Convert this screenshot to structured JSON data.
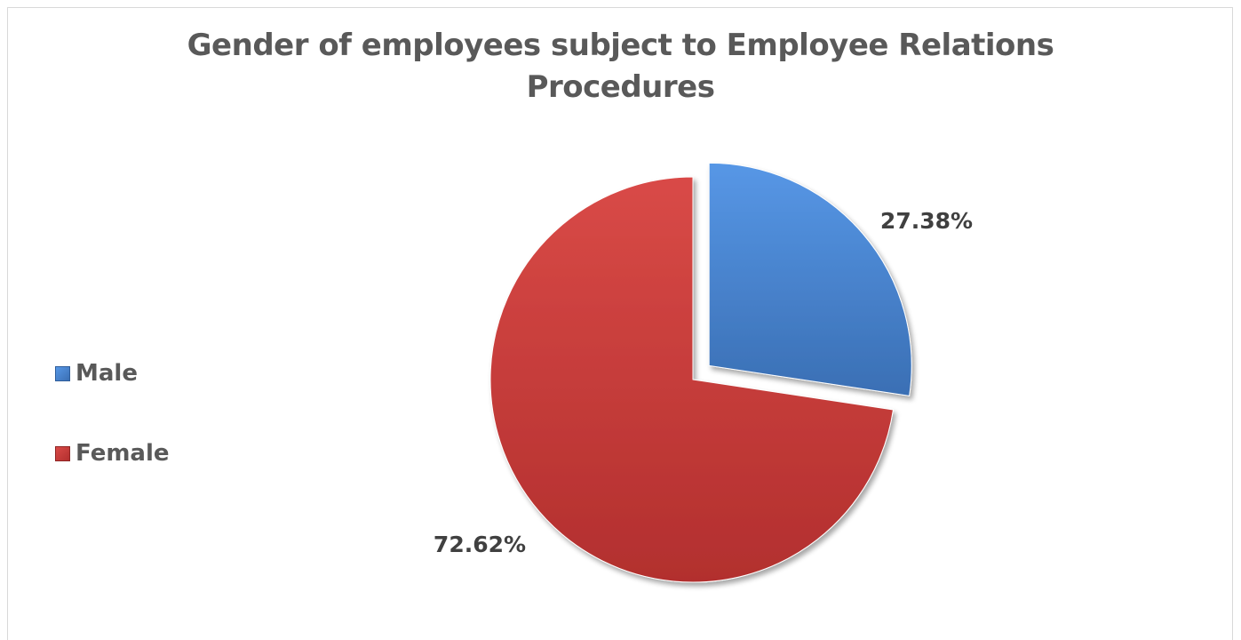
{
  "chart_data": {
    "type": "pie",
    "title_lines": [
      "Gender of employees subject to Employee Relations",
      "Procedures"
    ],
    "categories": [
      "Male",
      "Female"
    ],
    "values": [
      27.38,
      72.62
    ],
    "data_labels": [
      "27.38%",
      "72.62%"
    ],
    "colors": [
      "#4a87d6",
      "#cf3e3c"
    ],
    "legend_position": "left",
    "exploded": [
      "Male"
    ]
  }
}
